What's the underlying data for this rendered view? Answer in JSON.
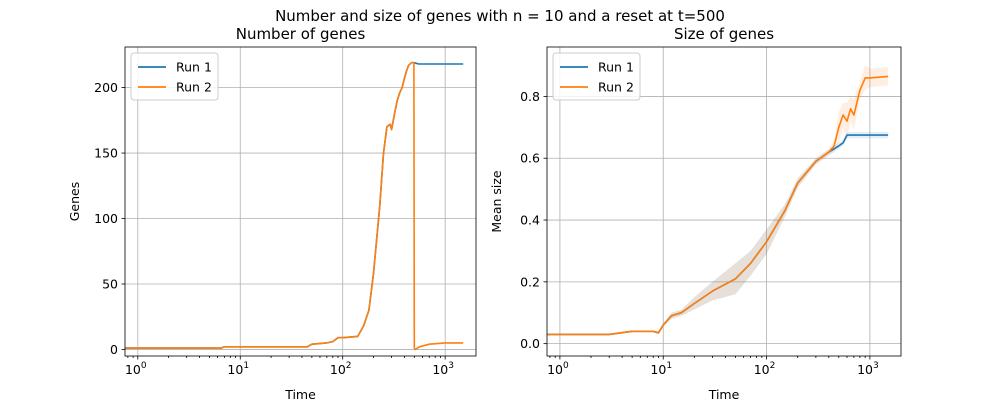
{
  "figure": {
    "suptitle": "Number and size of genes with n = 10 and a reset at t=500"
  },
  "chart_data": [
    {
      "type": "line",
      "title": "Number of genes",
      "xlabel": "Time",
      "ylabel": "Genes",
      "xscale": "log",
      "xlim": [
        0.75,
        2000
      ],
      "ylim": [
        -5,
        231
      ],
      "xticks": [
        1,
        10,
        100,
        1000
      ],
      "xtick_labels": [
        "10^0",
        "10^1",
        "10^2",
        "10^3"
      ],
      "yticks": [
        0,
        50,
        100,
        150,
        200
      ],
      "grid": true,
      "legend": "top-left",
      "series": [
        {
          "name": "Run 1",
          "color": "#1f77b4",
          "x": [
            0.75,
            6.5,
            7,
            45,
            50,
            70,
            80,
            90,
            100,
            140,
            160,
            180,
            200,
            230,
            250,
            270,
            290,
            300,
            320,
            340,
            360,
            380,
            400,
            420,
            440,
            470,
            500,
            550,
            700,
            1500
          ],
          "y": [
            1,
            1,
            2,
            2,
            4,
            5,
            6,
            9,
            9,
            10,
            18,
            30,
            58,
            110,
            150,
            170,
            172,
            168,
            180,
            190,
            196,
            200,
            207,
            213,
            217,
            219,
            219,
            218,
            218,
            218
          ]
        },
        {
          "name": "Run 2",
          "color": "#ff7f0e",
          "x": [
            0.75,
            6.5,
            7,
            45,
            50,
            70,
            80,
            90,
            100,
            140,
            160,
            180,
            200,
            230,
            250,
            270,
            290,
            300,
            320,
            340,
            360,
            380,
            400,
            420,
            440,
            470,
            495,
            500,
            510,
            560,
            700,
            1000,
            1500
          ],
          "y": [
            1,
            1,
            2,
            2,
            4,
            5,
            6,
            9,
            9,
            10,
            18,
            30,
            58,
            110,
            150,
            170,
            172,
            168,
            180,
            190,
            196,
            200,
            207,
            213,
            217,
            219,
            219,
            1,
            0,
            2,
            4,
            5,
            5
          ]
        }
      ]
    },
    {
      "type": "line",
      "title": "Size of genes",
      "xlabel": "Time",
      "ylabel": "Mean size",
      "xscale": "log",
      "xlim": [
        0.75,
        2000
      ],
      "ylim": [
        -0.04,
        0.96
      ],
      "xticks": [
        1,
        10,
        100,
        1000
      ],
      "xtick_labels": [
        "10^0",
        "10^1",
        "10^2",
        "10^3"
      ],
      "yticks": [
        0.0,
        0.2,
        0.4,
        0.6,
        0.8
      ],
      "ytick_labels": [
        "0.0",
        "0.2",
        "0.4",
        "0.6",
        "0.8"
      ],
      "grid": true,
      "legend": "top-left",
      "shaded_bands": true,
      "series": [
        {
          "name": "Run 1",
          "color": "#1f77b4",
          "x": [
            0.75,
            3,
            5,
            8,
            9,
            10,
            12,
            15,
            20,
            30,
            50,
            70,
            100,
            150,
            200,
            300,
            400,
            500,
            550,
            600,
            700,
            1500
          ],
          "y": [
            0.03,
            0.03,
            0.04,
            0.04,
            0.035,
            0.06,
            0.09,
            0.1,
            0.13,
            0.17,
            0.21,
            0.26,
            0.33,
            0.43,
            0.52,
            0.59,
            0.62,
            0.64,
            0.65,
            0.675,
            0.675,
            0.675
          ],
          "band": [
            0.0,
            0.0,
            0.0,
            0.0,
            0.005,
            0.005,
            0.01,
            0.01,
            0.02,
            0.03,
            0.05,
            0.04,
            0.04,
            0.02,
            0.015,
            0.01,
            0.01,
            0.01,
            0.01,
            0.01,
            0.01,
            0.01
          ]
        },
        {
          "name": "Run 2",
          "color": "#ff7f0e",
          "x": [
            0.75,
            3,
            5,
            8,
            9,
            10,
            12,
            15,
            20,
            30,
            50,
            70,
            100,
            150,
            200,
            300,
            400,
            450,
            500,
            550,
            600,
            650,
            700,
            800,
            900,
            1000,
            1500
          ],
          "y": [
            0.03,
            0.03,
            0.04,
            0.04,
            0.035,
            0.06,
            0.09,
            0.1,
            0.13,
            0.17,
            0.21,
            0.26,
            0.33,
            0.43,
            0.52,
            0.59,
            0.62,
            0.64,
            0.7,
            0.74,
            0.72,
            0.76,
            0.74,
            0.82,
            0.86,
            0.86,
            0.865
          ],
          "band": [
            0.0,
            0.0,
            0.0,
            0.0,
            0.005,
            0.005,
            0.01,
            0.01,
            0.02,
            0.03,
            0.05,
            0.04,
            0.04,
            0.02,
            0.015,
            0.01,
            0.01,
            0.02,
            0.05,
            0.04,
            0.06,
            0.04,
            0.05,
            0.03,
            0.04,
            0.03,
            0.03
          ]
        }
      ]
    }
  ]
}
